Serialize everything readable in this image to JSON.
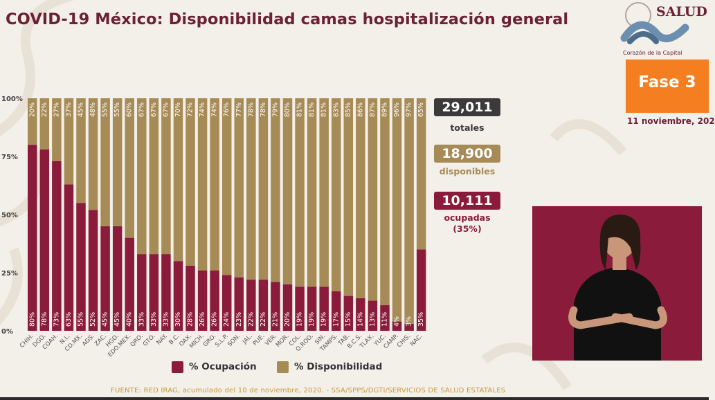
{
  "title": "COVID-19 México: Disponibilidad camas hospitalización general",
  "logo": {
    "text": "SALUD",
    "subtitle": "Corazón de la Capital"
  },
  "phase": {
    "label": "Fase 3"
  },
  "date": "11 noviembre, 202",
  "stats": {
    "total": {
      "value": "29,011",
      "label": "totales",
      "color": "#3a3a3a"
    },
    "available": {
      "value": "18,900",
      "label": "disponibles",
      "color": "#a78b57"
    },
    "occupied": {
      "value": "10,111",
      "label": "ocupadas",
      "pct": "(35%)",
      "color": "#8b1b3a"
    }
  },
  "legend": {
    "occupancy": "% Ocupación",
    "availability": "% Disponibilidad"
  },
  "source": "FUENTE: RED IRAG, acumulado del 10 de noviembre, 2020. -  SSA/SPPS/DGTI/SERVICIOS DE SALUD ESTATALES",
  "chart_data": {
    "type": "bar",
    "stacked": true,
    "categories": [
      "CHIH.",
      "DGO.",
      "COAH.",
      "N.L.",
      "CD.MX.",
      "AGS.",
      "ZAC.",
      "HGO.",
      "EDO.MEX.",
      "QRO.",
      "GTO.",
      "NAY.",
      "B.C.",
      "OAX.",
      "MICH.",
      "GRO.",
      "S.L.P.",
      "SON.",
      "JAL.",
      "PUE.",
      "VER.",
      "MOR.",
      "COL.",
      "Q.ROO.",
      "SIN.",
      "TAMPS.",
      "TAB.",
      "B.C.S.",
      "TLAX.",
      "YUC.",
      "CAMP.",
      "CHIS.",
      "NAC."
    ],
    "series": [
      {
        "name": "% Ocupación",
        "color": "#8b1b3a",
        "values": [
          80,
          78,
          73,
          63,
          55,
          52,
          45,
          45,
          40,
          33,
          33,
          33,
          30,
          28,
          26,
          26,
          24,
          23,
          22,
          22,
          21,
          20,
          19,
          19,
          19,
          17,
          15,
          14,
          13,
          11,
          4,
          3,
          35
        ]
      },
      {
        "name": "% Disponibilidad",
        "color": "#a78b57",
        "values": [
          20,
          22,
          27,
          37,
          45,
          48,
          55,
          55,
          60,
          67,
          67,
          67,
          70,
          72,
          74,
          74,
          76,
          77,
          78,
          78,
          79,
          80,
          81,
          81,
          81,
          83,
          85,
          86,
          87,
          89,
          96,
          97,
          65
        ]
      }
    ],
    "ylim": [
      0,
      100
    ],
    "yticks": [
      "0%",
      "25%",
      "50%",
      "75%",
      "100%"
    ],
    "legend_position": "bottom"
  }
}
